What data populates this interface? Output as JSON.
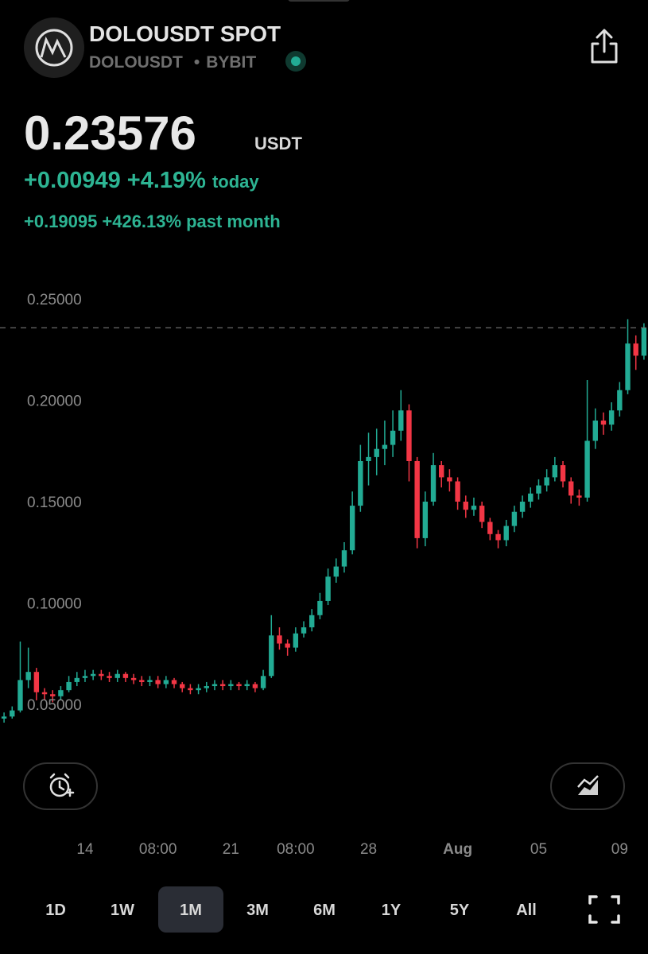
{
  "header": {
    "title": "DOLOUSDT SPOT",
    "symbol": "DOLOUSDT",
    "exchange": "BYBIT"
  },
  "price": 0.23576,
  "price_unit": "USDT",
  "change_today": {
    "abs": "+0.00949",
    "pct": "+4.19%",
    "label": "today"
  },
  "change_month": {
    "abs": "+0.19095",
    "pct": "+426.13%",
    "label": "past month"
  },
  "timeframes": [
    "1D",
    "1W",
    "1M",
    "3M",
    "6M",
    "1Y",
    "5Y",
    "All"
  ],
  "chart_data": {
    "type": "candlestick",
    "up_color": "#22ab94",
    "down_color": "#f23645",
    "ylim": [
      0.03,
      0.26
    ],
    "yticks": [
      {
        "value": 0.25,
        "label": "0.25000"
      },
      {
        "value": 0.2,
        "label": "0.20000"
      },
      {
        "value": 0.15,
        "label": "0.15000"
      },
      {
        "value": 0.1,
        "label": "0.10000"
      },
      {
        "value": 0.05,
        "label": "0.05000"
      }
    ],
    "categories": [
      null,
      null,
      null,
      null,
      null,
      null,
      null,
      null,
      null,
      null,
      "14",
      null,
      null,
      null,
      null,
      null,
      null,
      null,
      null,
      "08:00",
      null,
      null,
      null,
      null,
      null,
      null,
      null,
      null,
      "21",
      null,
      null,
      null,
      null,
      null,
      null,
      null,
      "08:00",
      null,
      null,
      null,
      null,
      null,
      null,
      null,
      null,
      "28",
      null,
      null,
      null,
      null,
      null,
      null,
      null,
      null,
      null,
      null,
      "Aug",
      null,
      null,
      null,
      null,
      null,
      null,
      null,
      null,
      null,
      "05",
      null,
      null,
      null,
      null,
      null,
      null,
      null,
      null,
      null,
      "09",
      null,
      null,
      null
    ],
    "open": [
      0.043,
      0.044,
      0.047,
      0.062,
      0.066,
      0.056,
      0.055,
      0.054,
      0.057,
      0.061,
      0.063,
      0.064,
      0.065,
      0.064,
      0.063,
      0.065,
      0.063,
      0.062,
      0.061,
      0.062,
      0.06,
      0.062,
      0.06,
      0.058,
      0.057,
      0.058,
      0.059,
      0.06,
      0.059,
      0.06,
      0.059,
      0.06,
      0.058,
      0.064,
      0.084,
      0.08,
      0.078,
      0.085,
      0.088,
      0.094,
      0.101,
      0.113,
      0.118,
      0.126,
      0.148,
      0.17,
      0.172,
      0.176,
      0.178,
      0.185,
      0.195,
      0.17,
      0.132,
      0.15,
      0.168,
      0.162,
      0.16,
      0.15,
      0.146,
      0.148,
      0.14,
      0.134,
      0.131,
      0.138,
      0.145,
      0.15,
      0.154,
      0.158,
      0.162,
      0.168,
      0.16,
      0.153,
      0.152,
      0.18,
      0.19,
      0.188,
      0.195,
      0.205,
      0.228,
      0.222
    ],
    "high": [
      0.046,
      0.049,
      0.081,
      0.078,
      0.068,
      0.058,
      0.057,
      0.059,
      0.064,
      0.066,
      0.067,
      0.067,
      0.067,
      0.066,
      0.067,
      0.066,
      0.065,
      0.064,
      0.064,
      0.064,
      0.064,
      0.063,
      0.061,
      0.06,
      0.06,
      0.061,
      0.062,
      0.062,
      0.062,
      0.061,
      0.062,
      0.061,
      0.067,
      0.094,
      0.088,
      0.082,
      0.088,
      0.091,
      0.097,
      0.105,
      0.117,
      0.122,
      0.13,
      0.155,
      0.178,
      0.184,
      0.186,
      0.19,
      0.195,
      0.205,
      0.198,
      0.172,
      0.155,
      0.174,
      0.17,
      0.166,
      0.162,
      0.153,
      0.152,
      0.15,
      0.142,
      0.136,
      0.141,
      0.148,
      0.153,
      0.157,
      0.161,
      0.166,
      0.172,
      0.17,
      0.162,
      0.156,
      0.21,
      0.196,
      0.194,
      0.199,
      0.209,
      0.24,
      0.232,
      0.238
    ],
    "low": [
      0.041,
      0.043,
      0.046,
      0.058,
      0.052,
      0.052,
      0.051,
      0.052,
      0.056,
      0.059,
      0.061,
      0.062,
      0.062,
      0.061,
      0.061,
      0.061,
      0.06,
      0.059,
      0.059,
      0.058,
      0.058,
      0.058,
      0.056,
      0.055,
      0.055,
      0.056,
      0.057,
      0.057,
      0.057,
      0.057,
      0.057,
      0.056,
      0.057,
      0.063,
      0.077,
      0.074,
      0.076,
      0.083,
      0.086,
      0.092,
      0.099,
      0.11,
      0.115,
      0.124,
      0.145,
      0.158,
      0.163,
      0.168,
      0.172,
      0.18,
      0.16,
      0.127,
      0.128,
      0.148,
      0.157,
      0.155,
      0.146,
      0.142,
      0.143,
      0.137,
      0.131,
      0.127,
      0.128,
      0.135,
      0.142,
      0.147,
      0.151,
      0.155,
      0.16,
      0.157,
      0.149,
      0.148,
      0.15,
      0.176,
      0.183,
      0.185,
      0.192,
      0.203,
      0.215,
      0.22
    ],
    "close": [
      0.044,
      0.047,
      0.062,
      0.066,
      0.056,
      0.055,
      0.054,
      0.057,
      0.061,
      0.063,
      0.064,
      0.065,
      0.064,
      0.063,
      0.065,
      0.063,
      0.062,
      0.061,
      0.062,
      0.06,
      0.062,
      0.06,
      0.058,
      0.057,
      0.058,
      0.059,
      0.06,
      0.059,
      0.06,
      0.059,
      0.06,
      0.058,
      0.064,
      0.084,
      0.08,
      0.078,
      0.085,
      0.088,
      0.094,
      0.101,
      0.113,
      0.118,
      0.126,
      0.148,
      0.17,
      0.172,
      0.176,
      0.178,
      0.185,
      0.195,
      0.17,
      0.132,
      0.15,
      0.168,
      0.162,
      0.16,
      0.15,
      0.146,
      0.148,
      0.14,
      0.134,
      0.131,
      0.138,
      0.145,
      0.15,
      0.154,
      0.158,
      0.162,
      0.168,
      0.16,
      0.153,
      0.152,
      0.18,
      0.19,
      0.188,
      0.195,
      0.205,
      0.228,
      0.222,
      0.23576
    ]
  }
}
